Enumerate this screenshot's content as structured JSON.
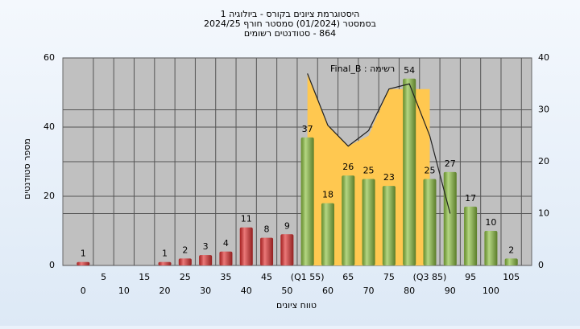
{
  "chart_data": {
    "type": "bar",
    "title_lines": [
      "היסטוגרמת ציונים בקורס - ביולוגיה 1",
      "בסמסטר  (01/2024)  סמסטר חורף 2024/25",
      "864 - סטודנטים רשומים"
    ],
    "annotation": "רשימה : Final_B",
    "y_label": "מספר סטודנטים",
    "x_label": "טווח ציונים",
    "x": [
      0,
      5,
      10,
      15,
      20,
      25,
      30,
      35,
      40,
      45,
      50,
      55,
      60,
      65,
      70,
      75,
      80,
      85,
      90,
      95,
      100,
      105
    ],
    "values": [
      1,
      0,
      0,
      0,
      1,
      2,
      3,
      4,
      11,
      8,
      9,
      37,
      18,
      26,
      25,
      23,
      54,
      25,
      27,
      17,
      10,
      2
    ],
    "bar_colors": [
      "#e03030",
      "#e03030",
      "#e03030",
      "#e03030",
      "#e03030",
      "#e03030",
      "#e03030",
      "#e03030",
      "#e03030",
      "#e03030",
      "#e03030",
      "#8cc040",
      "#8cc040",
      "#8cc040",
      "#8cc040",
      "#8cc040",
      "#8cc040",
      "#8cc040",
      "#8cc040",
      "#8cc040",
      "#8cc040",
      "#8cc040"
    ],
    "xlim": [
      -5,
      110
    ],
    "xticks": [
      0,
      5,
      10,
      15,
      20,
      25,
      30,
      35,
      40,
      45,
      50,
      {
        "value": 55,
        "label": "(Q1 55)"
      },
      60,
      65,
      70,
      75,
      80,
      {
        "value": 85,
        "label": "(Q3 85)"
      },
      90,
      95,
      100,
      105
    ],
    "ylim": [
      0,
      60
    ],
    "yticks": [
      0,
      20,
      40,
      60
    ],
    "y2lim": [
      0,
      40
    ],
    "y2ticks": [
      0,
      10,
      20,
      30,
      40
    ],
    "area": {
      "axis": "y2",
      "color": "#ffc850",
      "x": [
        55,
        60,
        65,
        70,
        75,
        80,
        85
      ],
      "values": [
        37,
        27,
        23,
        25,
        34,
        34,
        34
      ]
    },
    "line": {
      "axis": "y2",
      "color": "#202020",
      "x": [
        55,
        60,
        65,
        70,
        75,
        80,
        85,
        90
      ],
      "values": [
        37,
        27,
        23,
        26,
        34,
        35,
        25,
        10
      ]
    },
    "grid": true
  }
}
